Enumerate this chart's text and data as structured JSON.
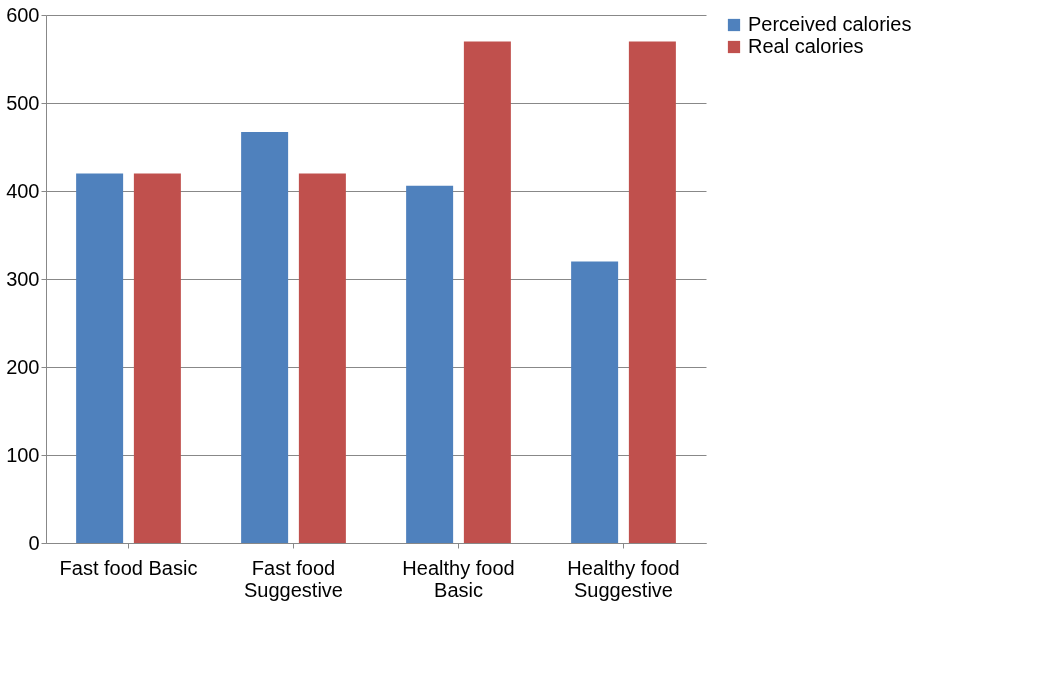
{
  "chart_data": {
    "type": "bar",
    "categories": [
      "Fast food Basic",
      "Fast food Suggestive",
      "Healthy food Basic",
      "Healthy food Suggestive"
    ],
    "series": [
      {
        "name": "Perceived calories",
        "color": "#4f81bd",
        "values": [
          420,
          467,
          406,
          320
        ]
      },
      {
        "name": "Real calories",
        "color": "#c0504d",
        "values": [
          420,
          420,
          570,
          570
        ]
      }
    ],
    "ylim": [
      0,
      600
    ],
    "yticks": [
      0,
      100,
      200,
      300,
      400,
      500,
      600
    ],
    "grid": "y",
    "legend": "right"
  }
}
